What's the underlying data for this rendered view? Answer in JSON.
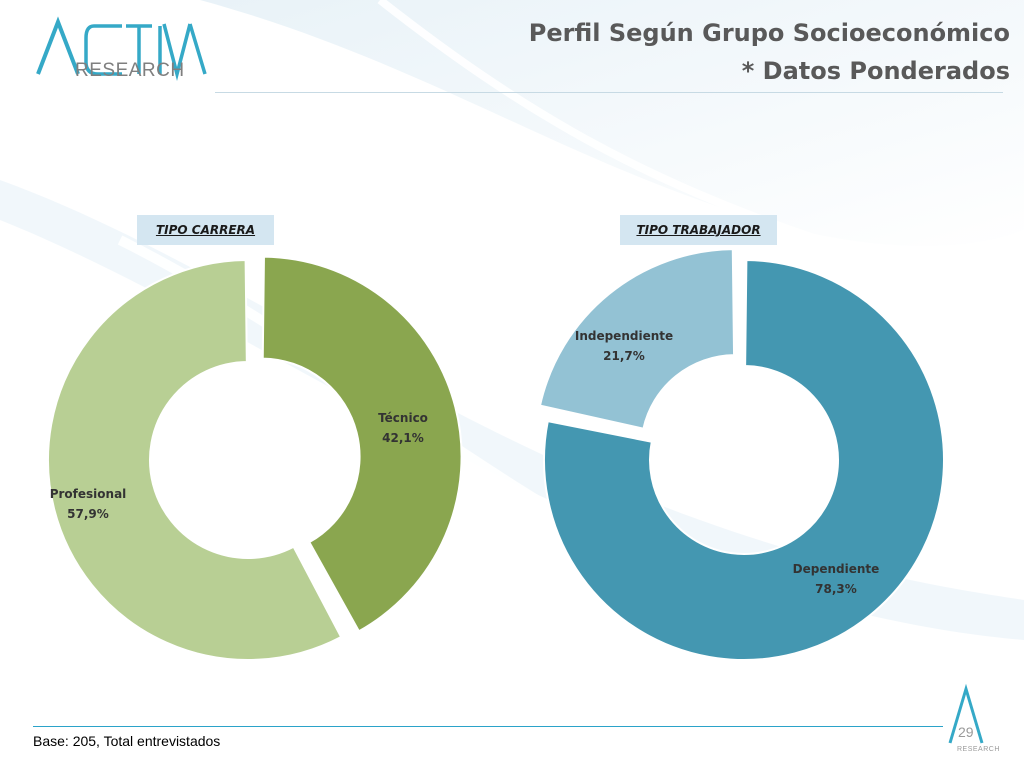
{
  "header": {
    "title_line1": "Perfil Según Grupo Socioeconómico",
    "title_line2": "* Datos Ponderados"
  },
  "logo": {
    "brand": "ACTIVA",
    "word": "RESEARCH"
  },
  "footer": {
    "base_note": "Base: 205, Total entrevistados",
    "page_number": "29",
    "mini_logo_word": "RESEARCH"
  },
  "chart_data": [
    {
      "type": "pie",
      "title": "TIPO CARRERA",
      "series": [
        {
          "name": "Técnico",
          "value": 42.1,
          "label": "42,1%",
          "color": "#8aa64f"
        },
        {
          "name": "Profesional",
          "value": 57.9,
          "label": "57,9%",
          "color": "#b8cf94"
        }
      ]
    },
    {
      "type": "pie",
      "title": "TIPO TRABAJADOR",
      "series": [
        {
          "name": "Dependiente",
          "value": 78.3,
          "label": "78,3%",
          "color": "#4497b1"
        },
        {
          "name": "Independiente",
          "value": 21.7,
          "label": "21,7%",
          "color": "#93c2d4"
        }
      ]
    }
  ]
}
